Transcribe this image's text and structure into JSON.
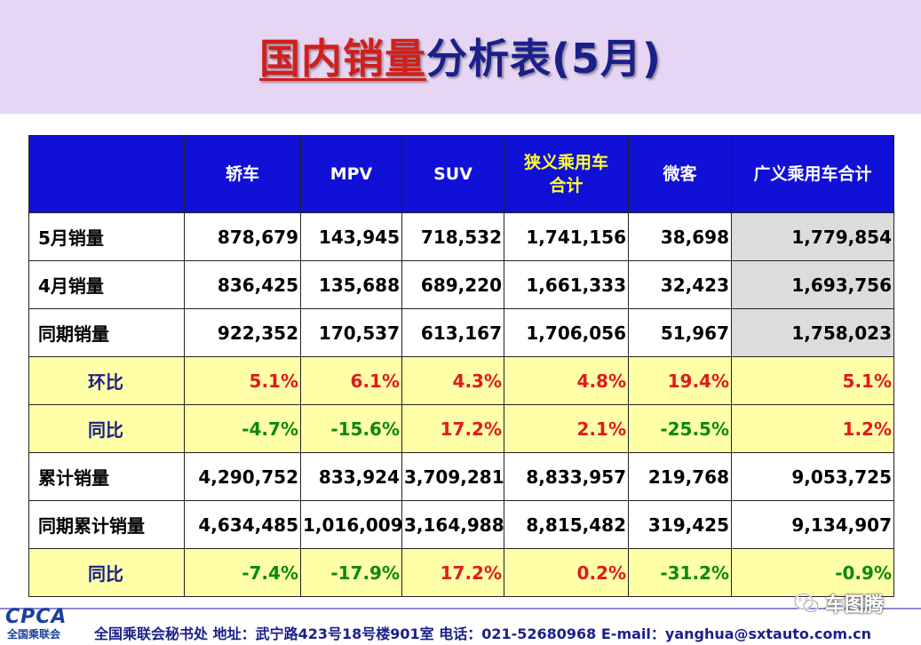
{
  "title": {
    "part1": "国内销量",
    "part2": "分析表(5月)"
  },
  "table": {
    "headers": [
      "",
      "轿车",
      "MPV",
      "SUV",
      "狭义乘用车\n合计",
      "微客",
      "广义乘用车合计"
    ],
    "rows": [
      {
        "label": "5月销量",
        "type": "value",
        "cells": [
          "878,679",
          "143,945",
          "718,532",
          "1,741,156",
          "38,698",
          "1,779,854"
        ]
      },
      {
        "label": "4月销量",
        "type": "value",
        "cells": [
          "836,425",
          "135,688",
          "689,220",
          "1,661,333",
          "32,423",
          "1,693,756"
        ]
      },
      {
        "label": "同期销量",
        "type": "value",
        "cells": [
          "922,352",
          "170,537",
          "613,167",
          "1,706,056",
          "51,967",
          "1,758,023"
        ]
      },
      {
        "label": "环比",
        "type": "ratio",
        "cells": [
          "5.1%",
          "6.1%",
          "4.3%",
          "4.8%",
          "19.4%",
          "5.1%"
        ]
      },
      {
        "label": "同比",
        "type": "ratio",
        "cells": [
          "-4.7%",
          "-15.6%",
          "17.2%",
          "2.1%",
          "-25.5%",
          "1.2%"
        ]
      },
      {
        "label": "累计销量",
        "type": "value",
        "cells": [
          "4,290,752",
          "833,924",
          "3,709,281",
          "8,833,957",
          "219,768",
          "9,053,725"
        ]
      },
      {
        "label": "同期累计销量",
        "type": "value",
        "cells": [
          "4,634,485",
          "1,016,009",
          "3,164,988",
          "8,815,482",
          "319,425",
          "9,134,907"
        ]
      },
      {
        "label": "同比",
        "type": "ratio",
        "cells": [
          "-7.4%",
          "-17.9%",
          "17.2%",
          "0.2%",
          "-31.2%",
          "-0.9%"
        ]
      }
    ]
  },
  "colors": {
    "header_bg": "#1010d6",
    "ratio_bg": "#ffffa8",
    "positive": "#e01b1b",
    "negative": "#0a8a0a"
  },
  "footer": {
    "logo_text": "CPCA",
    "logo_sub": "全国乘联会",
    "text": "全国乘联会秘书处  地址：武宁路423号18号楼901室    电话：021-52680968  E-mail：yanghua@sxtauto.com.cn"
  },
  "watermark": {
    "icon": "wechat-icon",
    "text": "车图腾"
  }
}
